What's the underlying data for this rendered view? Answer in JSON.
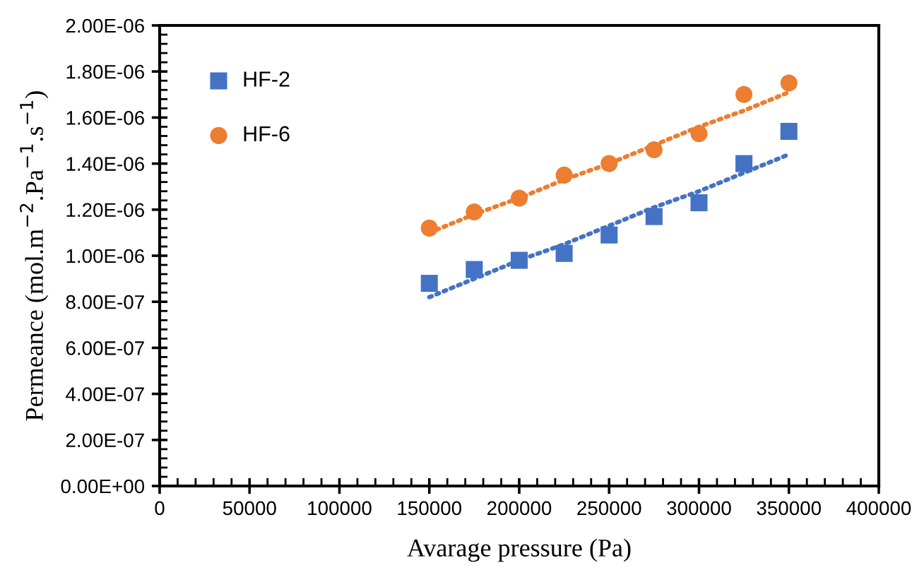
{
  "chart_data": {
    "type": "scatter",
    "xlabel": "Avarage pressure (Pa)",
    "ylabel": "Permeance (mol.m$^{−2}$.Pa$^{−1}$.s$^{−1}$)",
    "x": [
      150000,
      175000,
      200000,
      225000,
      250000,
      275000,
      300000,
      325000,
      350000
    ],
    "series": [
      {
        "name": "HF-2",
        "color": "#4472c4",
        "marker": "square",
        "values": [
          8.8e-07,
          9.4e-07,
          9.8e-07,
          1.01e-06,
          1.09e-06,
          1.17e-06,
          1.23e-06,
          1.4e-06,
          1.54e-06
        ]
      },
      {
        "name": "HF-6",
        "color": "#ed7d31",
        "marker": "circle",
        "values": [
          1.12e-06,
          1.19e-06,
          1.25e-06,
          1.35e-06,
          1.4e-06,
          1.46e-06,
          1.53e-06,
          1.7e-06,
          1.75e-06
        ]
      },
      {
        "type": "line",
        "color": "#4472c4",
        "line_style": "dotted",
        "marker": "none",
        "values": [
          8.2e-07,
          9e-07,
          9.8e-07,
          1.05e-06,
          1.13e-06,
          1.21e-06,
          1.28e-06,
          1.36e-06,
          1.44e-06
        ]
      },
      {
        "type": "line",
        "color": "#ed7d31",
        "line_style": "dotted",
        "marker": "none",
        "values": [
          1.1e-06,
          1.18e-06,
          1.25e-06,
          1.33e-06,
          1.4e-06,
          1.48e-06,
          1.56e-06,
          1.63e-06,
          1.71e-06
        ]
      }
    ],
    "xlim": [
      0,
      400000
    ],
    "xticks": [
      0,
      50000,
      100000,
      150000,
      200000,
      250000,
      300000,
      350000,
      400000
    ],
    "ylim": [
      0,
      2e-06
    ],
    "yticks": [
      {
        "value": 0,
        "label": "0.00E+00"
      },
      {
        "value": 2e-07,
        "label": "2.00E-07"
      },
      {
        "value": 4e-07,
        "label": "4.00E-07"
      },
      {
        "value": 6e-07,
        "label": "6.00E-07"
      },
      {
        "value": 8e-07,
        "label": "8.00E-07"
      },
      {
        "value": 1e-06,
        "label": "1.00E-06"
      },
      {
        "value": 1.2e-06,
        "label": "1.20E-06"
      },
      {
        "value": 1.4e-06,
        "label": "1.40E-06"
      },
      {
        "value": 1.6e-06,
        "label": "1.60E-06"
      },
      {
        "value": 1.8e-06,
        "label": "1.80E-06"
      },
      {
        "value": 2e-06,
        "label": "2.00E-06"
      }
    ],
    "grid": false,
    "legend": "top left"
  }
}
